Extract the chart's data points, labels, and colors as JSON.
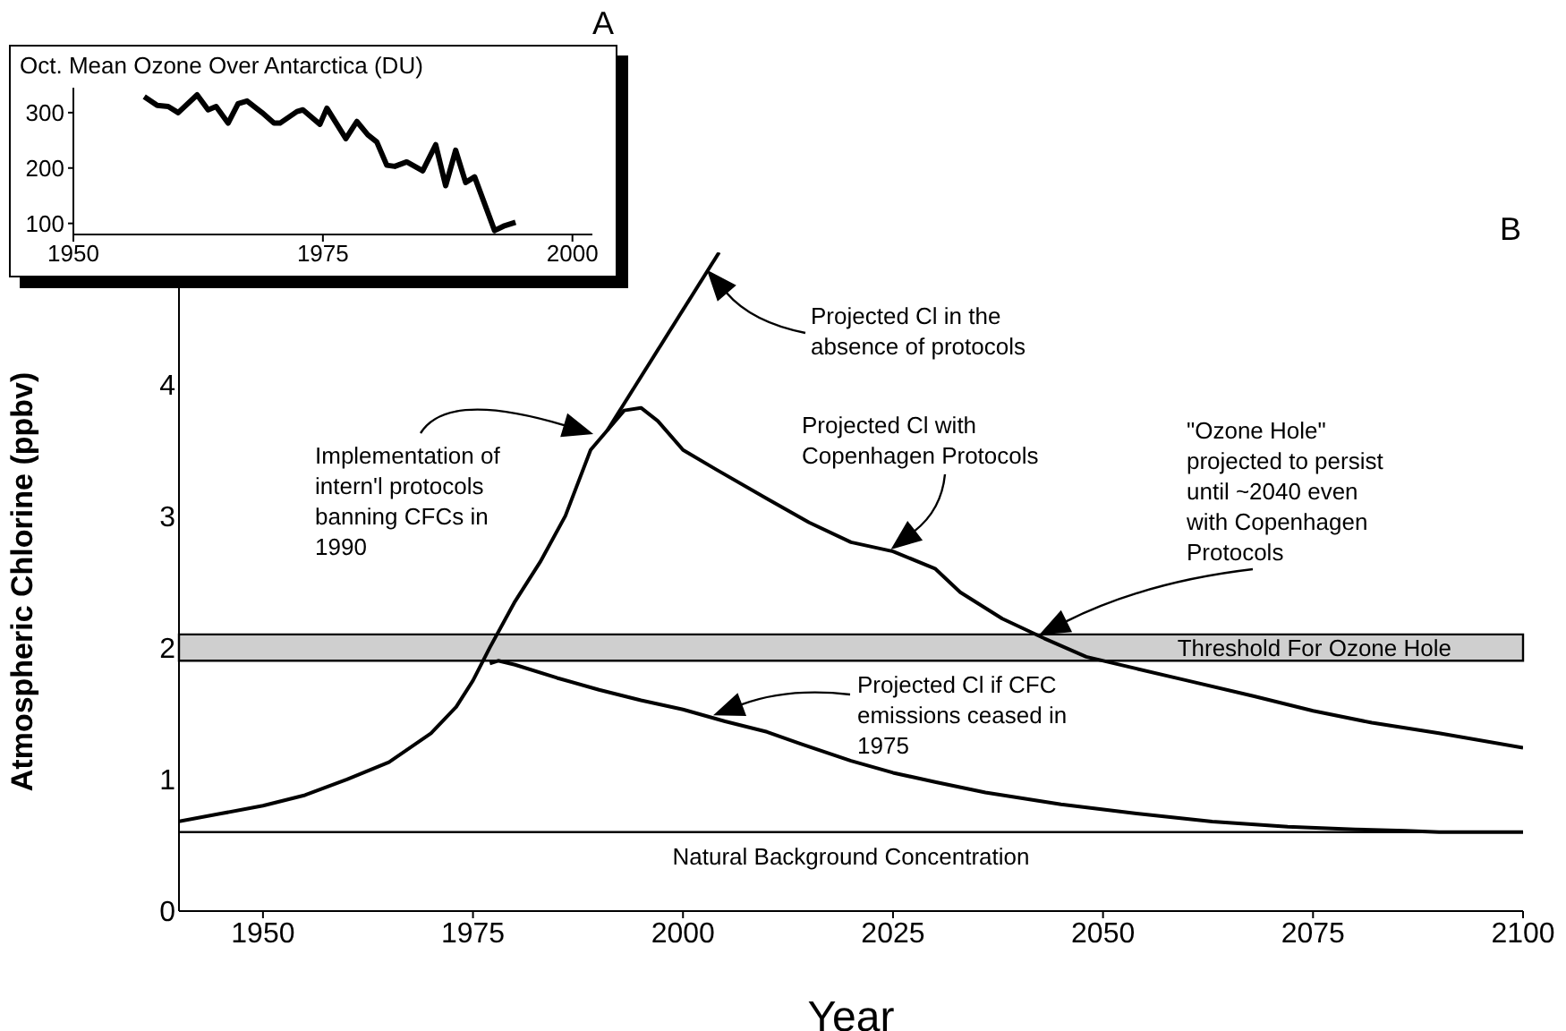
{
  "chart_data": [
    {
      "type": "line",
      "title": "Oct. Mean Ozone Over Antarctica  (DU)",
      "annotations": [
        "A"
      ],
      "marker": "none",
      "line_style": "solid",
      "grid": false,
      "xlim": [
        1950,
        2002
      ],
      "ylim": [
        80,
        345
      ],
      "xticks": [
        1950,
        1975,
        2000
      ],
      "yticks": [
        100,
        200,
        300
      ],
      "series": [
        {
          "color": "#000000",
          "x": [
            1957.1,
            1958.4,
            1959.5,
            1960.5,
            1962.4,
            1963.5,
            1964.3,
            1965.5,
            1966.5,
            1967.4,
            1968.9,
            1970.1,
            1970.7,
            1972.4,
            1973,
            1974.7,
            1975.4,
            1977.3,
            1978.4,
            1979.5,
            1980.4,
            1981.4,
            1982.2,
            1983.4,
            1985,
            1986.3,
            1987.3,
            1988.3,
            1989.3,
            1990.2,
            1992.2,
            1993.1,
            1994.3
          ],
          "values": [
            329,
            313,
            311,
            300,
            332,
            305,
            311,
            281,
            316,
            321,
            300,
            281,
            281,
            302,
            305,
            279,
            308,
            253,
            284,
            260,
            247,
            205,
            203,
            211,
            195,
            242,
            168,
            232,
            174,
            184,
            87,
            95,
            102
          ]
        }
      ]
    },
    {
      "type": "line",
      "xlabel": "Year",
      "ylabel": "Atmospheric Chlorine (ppbv)",
      "marker": "none",
      "line_style": "solid",
      "grid": false,
      "xlim": [
        1940,
        2100
      ],
      "ylim": [
        0,
        5
      ],
      "xticks": [
        1950,
        1975,
        2000,
        2025,
        2050,
        2075,
        2100
      ],
      "yticks": [
        0,
        1,
        2,
        3,
        4
      ],
      "bands": [
        {
          "axis": "y",
          "from": 1.9,
          "to": 2.1,
          "label": "Threshold For Ozone Hole",
          "color": "#cfcfcf"
        }
      ],
      "ref_lines": [
        {
          "axis": "y",
          "value": 0.6,
          "label": "Natural Background Concentration",
          "color": "#000000"
        }
      ],
      "annotations": [
        "B",
        "Projected Cl in the absence of protocols",
        "Implementation of intern'l protocols banning CFCs in 1990",
        "Projected Cl with Copenhagen Protocols",
        "\"Ozone Hole\" projected to persist until ~2040 even with Copenhagen Protocols",
        "Projected Cl if CFC emissions ceased in 1975"
      ],
      "series": [
        {
          "color": "#000000",
          "x": [
            1940,
            1945,
            1950,
            1955,
            1960,
            1965,
            1970,
            1973,
            1975,
            1977,
            1980,
            1983,
            1986,
            1989,
            1991,
            1993,
            1995,
            1997,
            2000,
            2004,
            2010,
            2015,
            2020,
            2025,
            2030,
            2033,
            2038,
            2043,
            2048,
            2054,
            2060,
            2068,
            2075,
            2082,
            2090,
            2100
          ],
          "values": [
            0.68,
            0.74,
            0.8,
            0.88,
            1.0,
            1.13,
            1.35,
            1.55,
            1.75,
            2.0,
            2.35,
            2.65,
            3.0,
            3.5,
            3.65,
            3.8,
            3.82,
            3.72,
            3.5,
            3.35,
            3.13,
            2.95,
            2.8,
            2.73,
            2.6,
            2.42,
            2.22,
            2.07,
            1.93,
            1.84,
            1.75,
            1.63,
            1.52,
            1.43,
            1.35,
            1.24
          ]
        },
        {
          "color": "#000000",
          "x": [
            1991,
            2004.3
          ],
          "values": [
            3.65,
            5.0
          ]
        },
        {
          "color": "#000000",
          "x": [
            1977,
            1978,
            1980,
            1985,
            1990,
            1995,
            2000,
            2005,
            2010,
            2014,
            2020,
            2025,
            2030,
            2036,
            2045,
            2054,
            2063,
            2072,
            2080,
            2086,
            2090,
            2100
          ],
          "values": [
            1.88,
            1.9,
            1.87,
            1.77,
            1.68,
            1.6,
            1.53,
            1.44,
            1.36,
            1.27,
            1.14,
            1.05,
            0.98,
            0.9,
            0.81,
            0.74,
            0.68,
            0.64,
            0.62,
            0.61,
            0.6,
            0.6
          ]
        }
      ]
    }
  ]
}
